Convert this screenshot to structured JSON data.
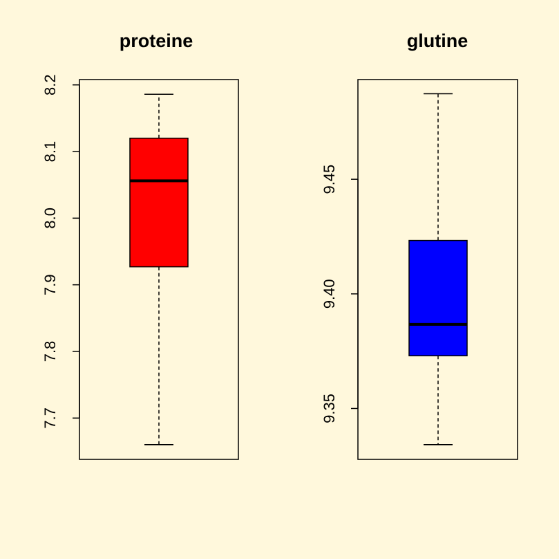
{
  "background": "#FFF8DC",
  "chart_data": [
    {
      "type": "boxplot",
      "title": "proteine",
      "fill": "#FF0000",
      "ylim": [
        7.638,
        8.208
      ],
      "yticks": [
        "7.7",
        "7.8",
        "7.9",
        "8.0",
        "8.1",
        "8.2"
      ],
      "min": 7.66,
      "q1": 7.927,
      "median": 8.056,
      "q3": 8.12,
      "max": 8.186
    },
    {
      "type": "boxplot",
      "title": "glutine",
      "fill": "#0000FF",
      "ylim": [
        9.3278,
        9.4935
      ],
      "yticks": [
        "9.35",
        "9.40",
        "9.45"
      ],
      "min": 9.3342,
      "q1": 9.373,
      "median": 9.3867,
      "q3": 9.4233,
      "max": 9.4873
    }
  ]
}
